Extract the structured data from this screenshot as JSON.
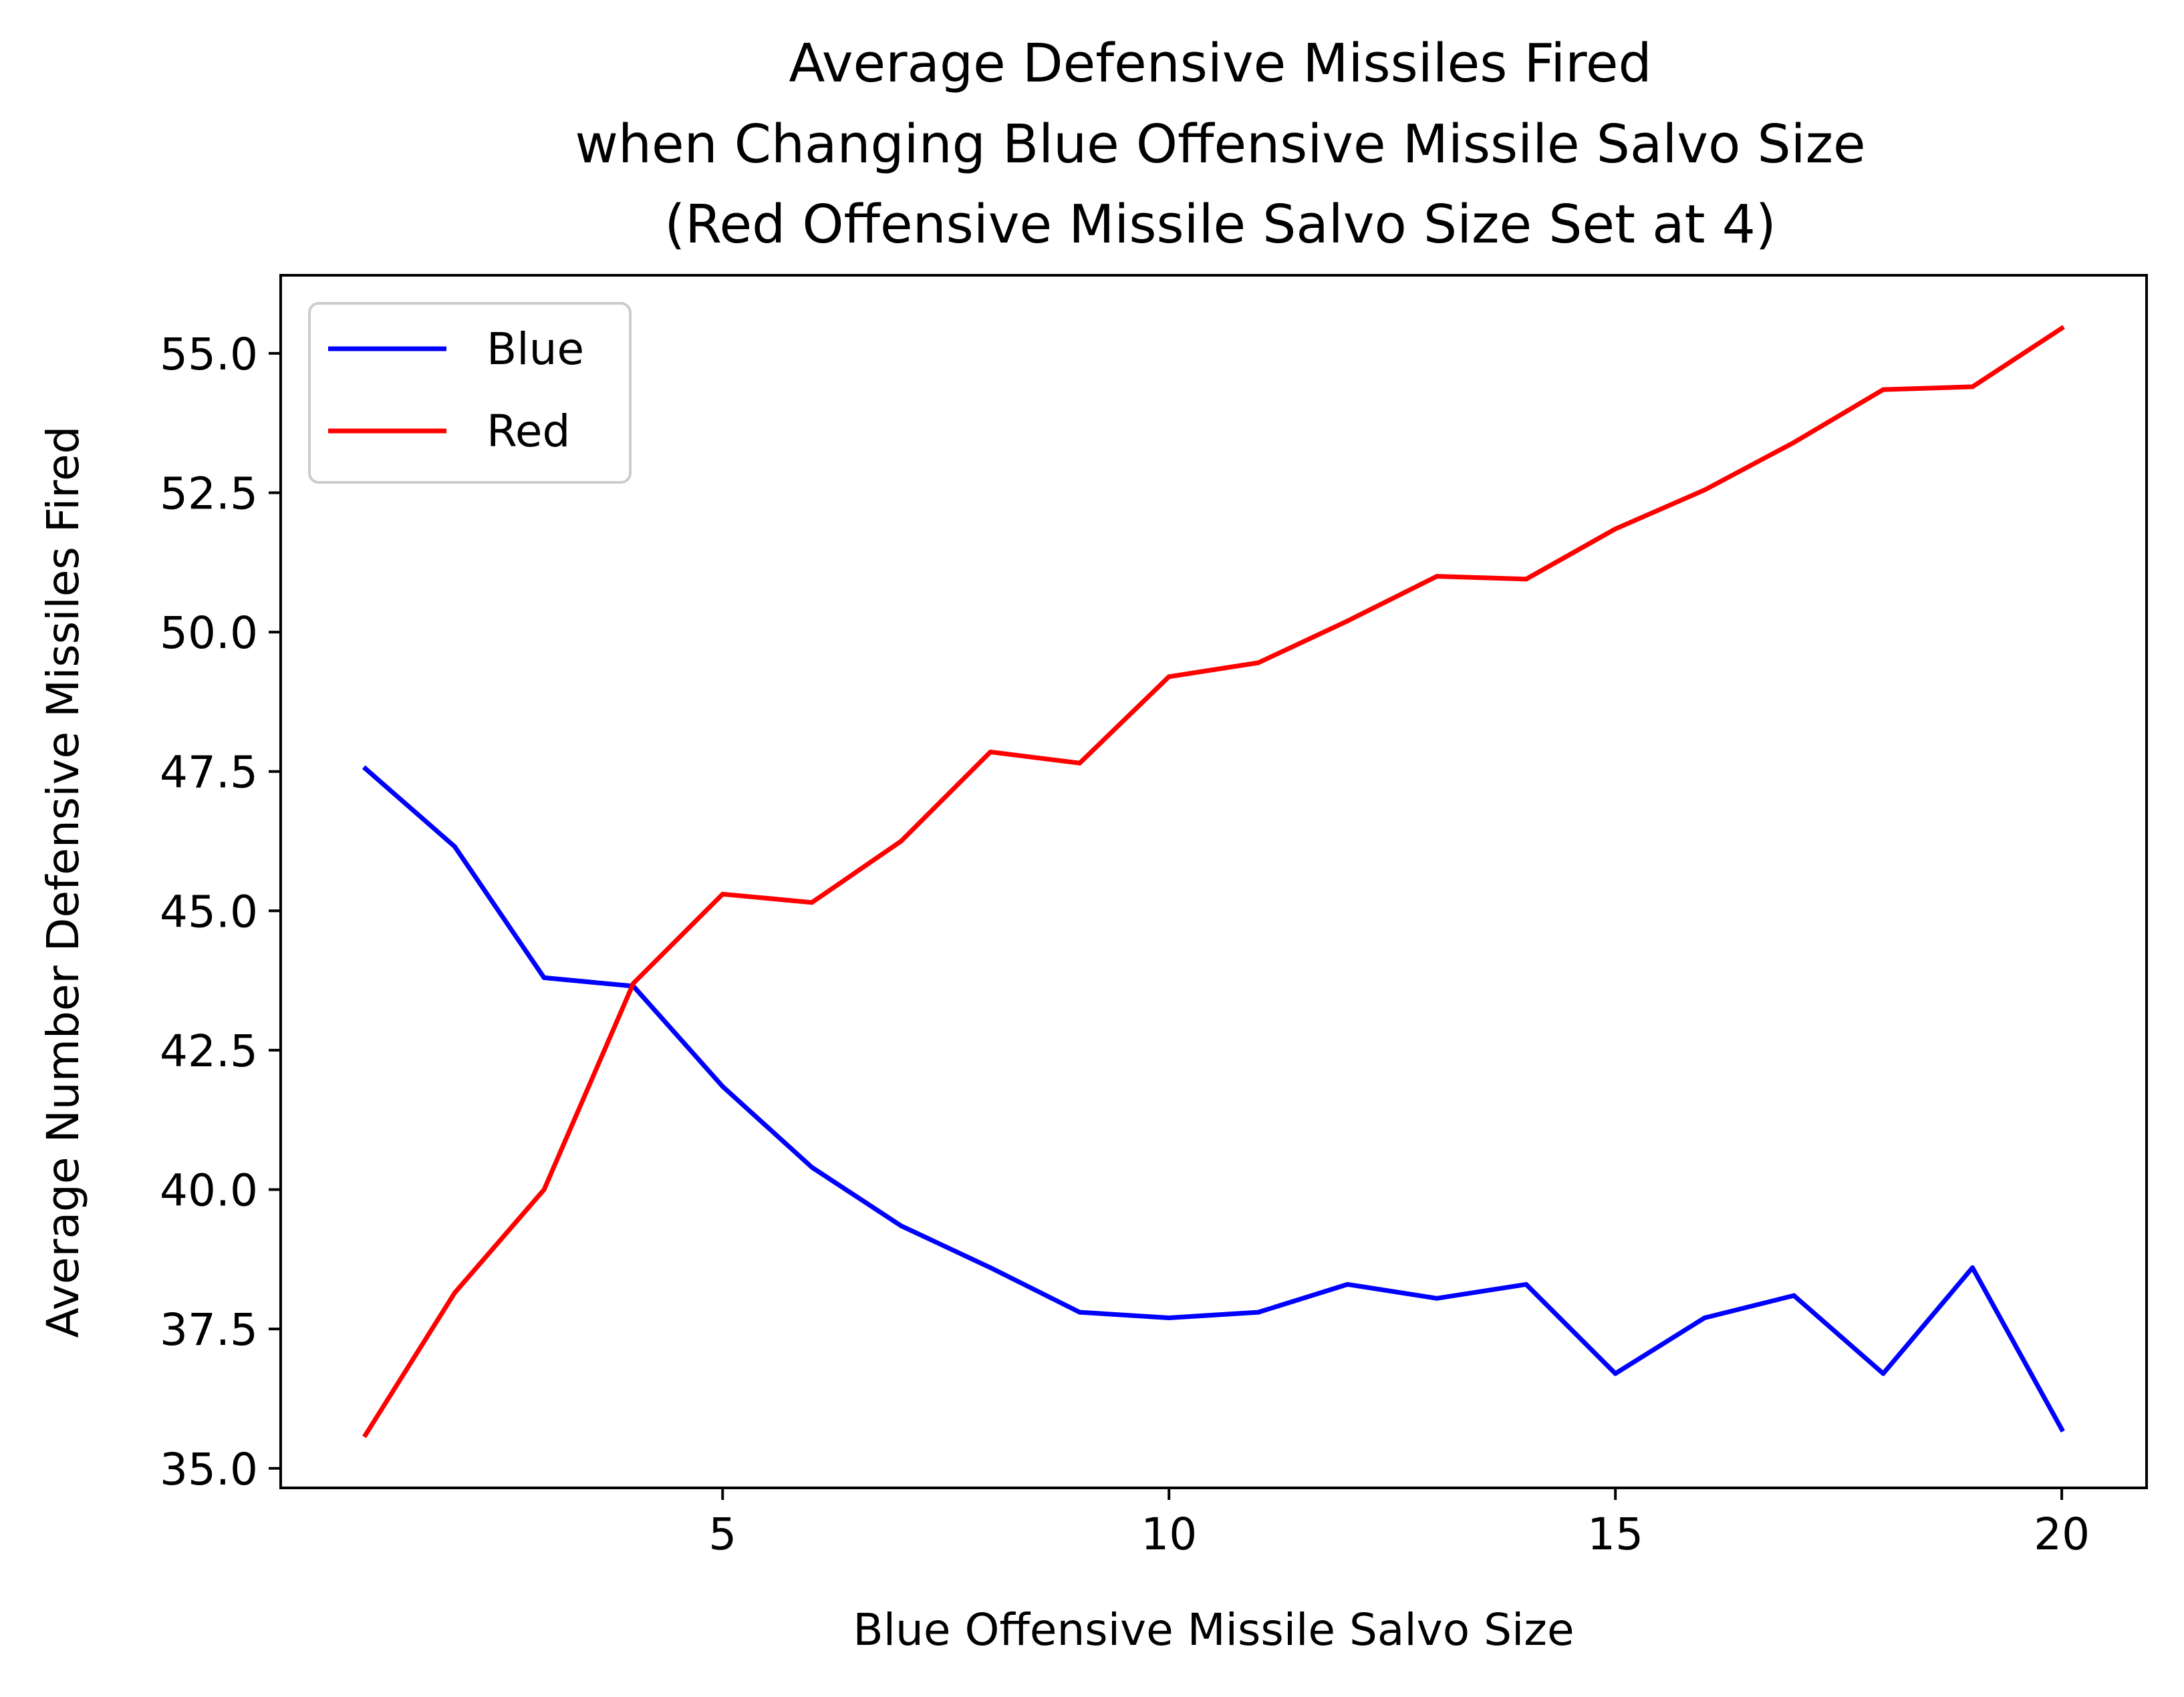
{
  "chart_data": {
    "type": "line",
    "title_lines": [
      "Average Defensive Missiles Fired",
      "when Changing Blue Offensive Missile Salvo Size",
      "(Red Offensive Missile Salvo Size Set at 4)"
    ],
    "xlabel": "Blue Offensive Missile Salvo Size",
    "ylabel": "Average Number Defensive Missiles Fired",
    "xlim": [
      0.05,
      20.95
    ],
    "ylim": [
      34.65,
      56.4
    ],
    "xticks": [
      5,
      10,
      15,
      20
    ],
    "xtick_labels": [
      "5",
      "10",
      "15",
      "20"
    ],
    "yticks": [
      35.0,
      37.5,
      40.0,
      42.5,
      45.0,
      47.5,
      50.0,
      52.5,
      55.0
    ],
    "ytick_labels": [
      "35.0",
      "37.5",
      "40.0",
      "42.5",
      "45.0",
      "47.5",
      "50.0",
      "52.5",
      "55.0"
    ],
    "grid": false,
    "legend_position": "upper-left",
    "x": [
      1,
      2,
      3,
      4,
      5,
      6,
      7,
      8,
      9,
      10,
      11,
      12,
      13,
      14,
      15,
      16,
      17,
      18,
      19,
      20
    ],
    "series": [
      {
        "name": "Blue",
        "color": "#0000ff",
        "values": [
          47.55,
          46.15,
          43.8,
          43.65,
          41.85,
          40.4,
          39.35,
          38.6,
          37.8,
          37.7,
          37.8,
          38.3,
          38.05,
          38.3,
          36.7,
          37.7,
          38.1,
          36.7,
          38.6,
          35.7
        ]
      },
      {
        "name": "Red",
        "color": "#ff0000",
        "values": [
          35.6,
          38.15,
          40.0,
          43.7,
          45.3,
          45.15,
          46.25,
          47.85,
          47.65,
          49.2,
          49.45,
          50.2,
          51.0,
          50.95,
          51.85,
          52.55,
          53.4,
          54.35,
          54.4,
          55.45
        ]
      }
    ]
  }
}
